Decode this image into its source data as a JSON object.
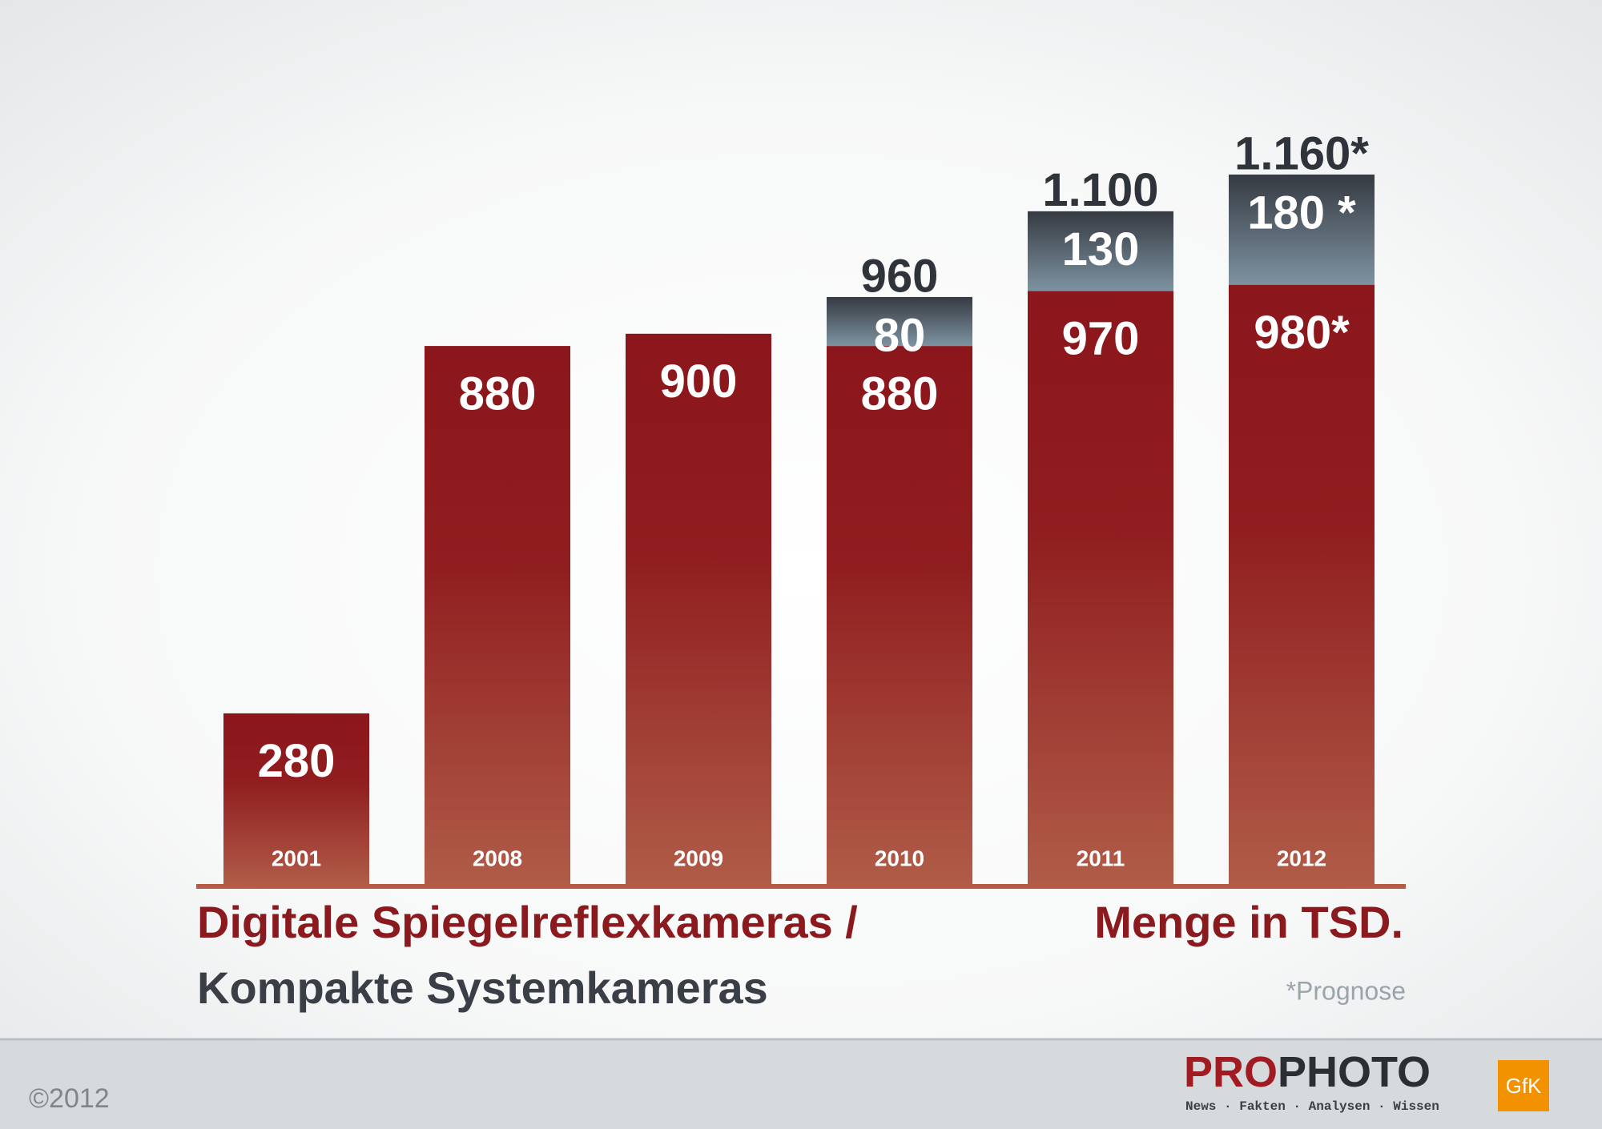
{
  "chart_data": {
    "type": "stacked-bar",
    "categories": [
      "2001",
      "2008",
      "2009",
      "2010",
      "2011",
      "2012"
    ],
    "series": [
      {
        "name": "Digitale Spiegelreflexkameras /",
        "color": "#8b161b",
        "values": [
          280,
          880,
          900,
          880,
          970,
          980
        ],
        "value_labels": [
          "280",
          "880",
          "900",
          "880",
          "970",
          "980*"
        ]
      },
      {
        "name": "Kompakte Systemkameras",
        "color": "#3a3f47",
        "values": [
          null,
          null,
          null,
          80,
          130,
          180
        ],
        "value_labels": [
          null,
          null,
          null,
          "80",
          "130",
          "180 *"
        ]
      }
    ],
    "totals": {
      "values": [
        null,
        null,
        null,
        960,
        1100,
        1160
      ],
      "value_labels": [
        null,
        null,
        null,
        "960",
        "1.100",
        "1.160*"
      ]
    },
    "subtitle": "Menge in TSD.",
    "note": "*Prognose"
  },
  "footer": {
    "copyright": "©2012",
    "logo_red": "PRO",
    "logo_dark": "PHOTO",
    "tagline": "News · Fakten · Analysen · Wissen",
    "partner": "GfK"
  }
}
